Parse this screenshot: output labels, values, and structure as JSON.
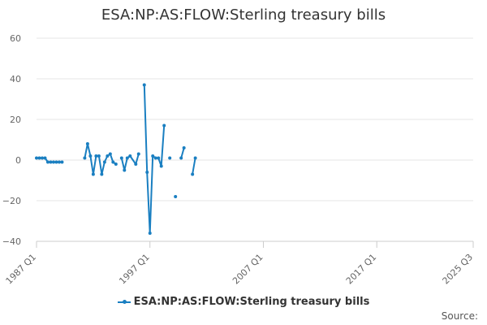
{
  "chart_data": {
    "type": "line",
    "title": "ESA:NP:AS:FLOW:Sterling treasury bills",
    "xlabel": "",
    "ylabel": "",
    "ylim": [
      -40,
      60
    ],
    "yticks": [
      "60",
      "40",
      "20",
      "0",
      "−20",
      "−40"
    ],
    "yticks_values": [
      60,
      40,
      20,
      0,
      -20,
      -40
    ],
    "xticks": [
      "1987 Q1",
      "1997 Q1",
      "2007 Q1",
      "2017 Q1",
      "2025 Q3"
    ],
    "xticks_values": [
      "1987 Q1",
      "1997 Q1",
      "2007 Q1",
      "2017 Q1",
      "2025 Q3"
    ],
    "grid": true,
    "legend": "bottom-center",
    "color": "#1a7fc1",
    "series": [
      {
        "name": "ESA:NP:AS:FLOW:Sterling treasury bills",
        "x": [
          "1987 Q1",
          "1987 Q2",
          "1987 Q3",
          "1987 Q4",
          "1988 Q1",
          "1988 Q2",
          "1988 Q3",
          "1988 Q4",
          "1989 Q1",
          "1989 Q2",
          "1991 Q2",
          "1991 Q3",
          "1991 Q4",
          "1992 Q1",
          "1992 Q2",
          "1992 Q3",
          "1992 Q4",
          "1993 Q1",
          "1993 Q2",
          "1993 Q3",
          "1993 Q4",
          "1994 Q1",
          "1994 Q3",
          "1994 Q4",
          "1995 Q1",
          "1995 Q2",
          "1995 Q4",
          "1996 Q1",
          "1996 Q3",
          "1996 Q4",
          "1997 Q1",
          "1997 Q2",
          "1997 Q3",
          "1997 Q4",
          "1998 Q1",
          "1998 Q2",
          "1998 Q4",
          "1999 Q2",
          "1999 Q4",
          "2000 Q1",
          "2000 Q4",
          "2001 Q1"
        ],
        "y": [
          1,
          1,
          1,
          1,
          -1,
          -1,
          -1,
          -1,
          -1,
          -1,
          1,
          8,
          2,
          -7,
          2,
          2,
          -7,
          -1,
          2,
          3,
          -1,
          -2,
          1,
          -5,
          1,
          2,
          -2,
          3,
          37,
          -6,
          -36,
          2,
          1,
          1,
          -3,
          17,
          1,
          -18,
          1,
          6,
          -7,
          1
        ],
        "gaps_after": [
          "1989 Q2",
          "1994 Q1",
          "1996 Q1",
          "1998 Q2",
          "1998 Q4",
          "1999 Q2",
          "2000 Q1"
        ]
      }
    ],
    "source_label": "Source:"
  }
}
